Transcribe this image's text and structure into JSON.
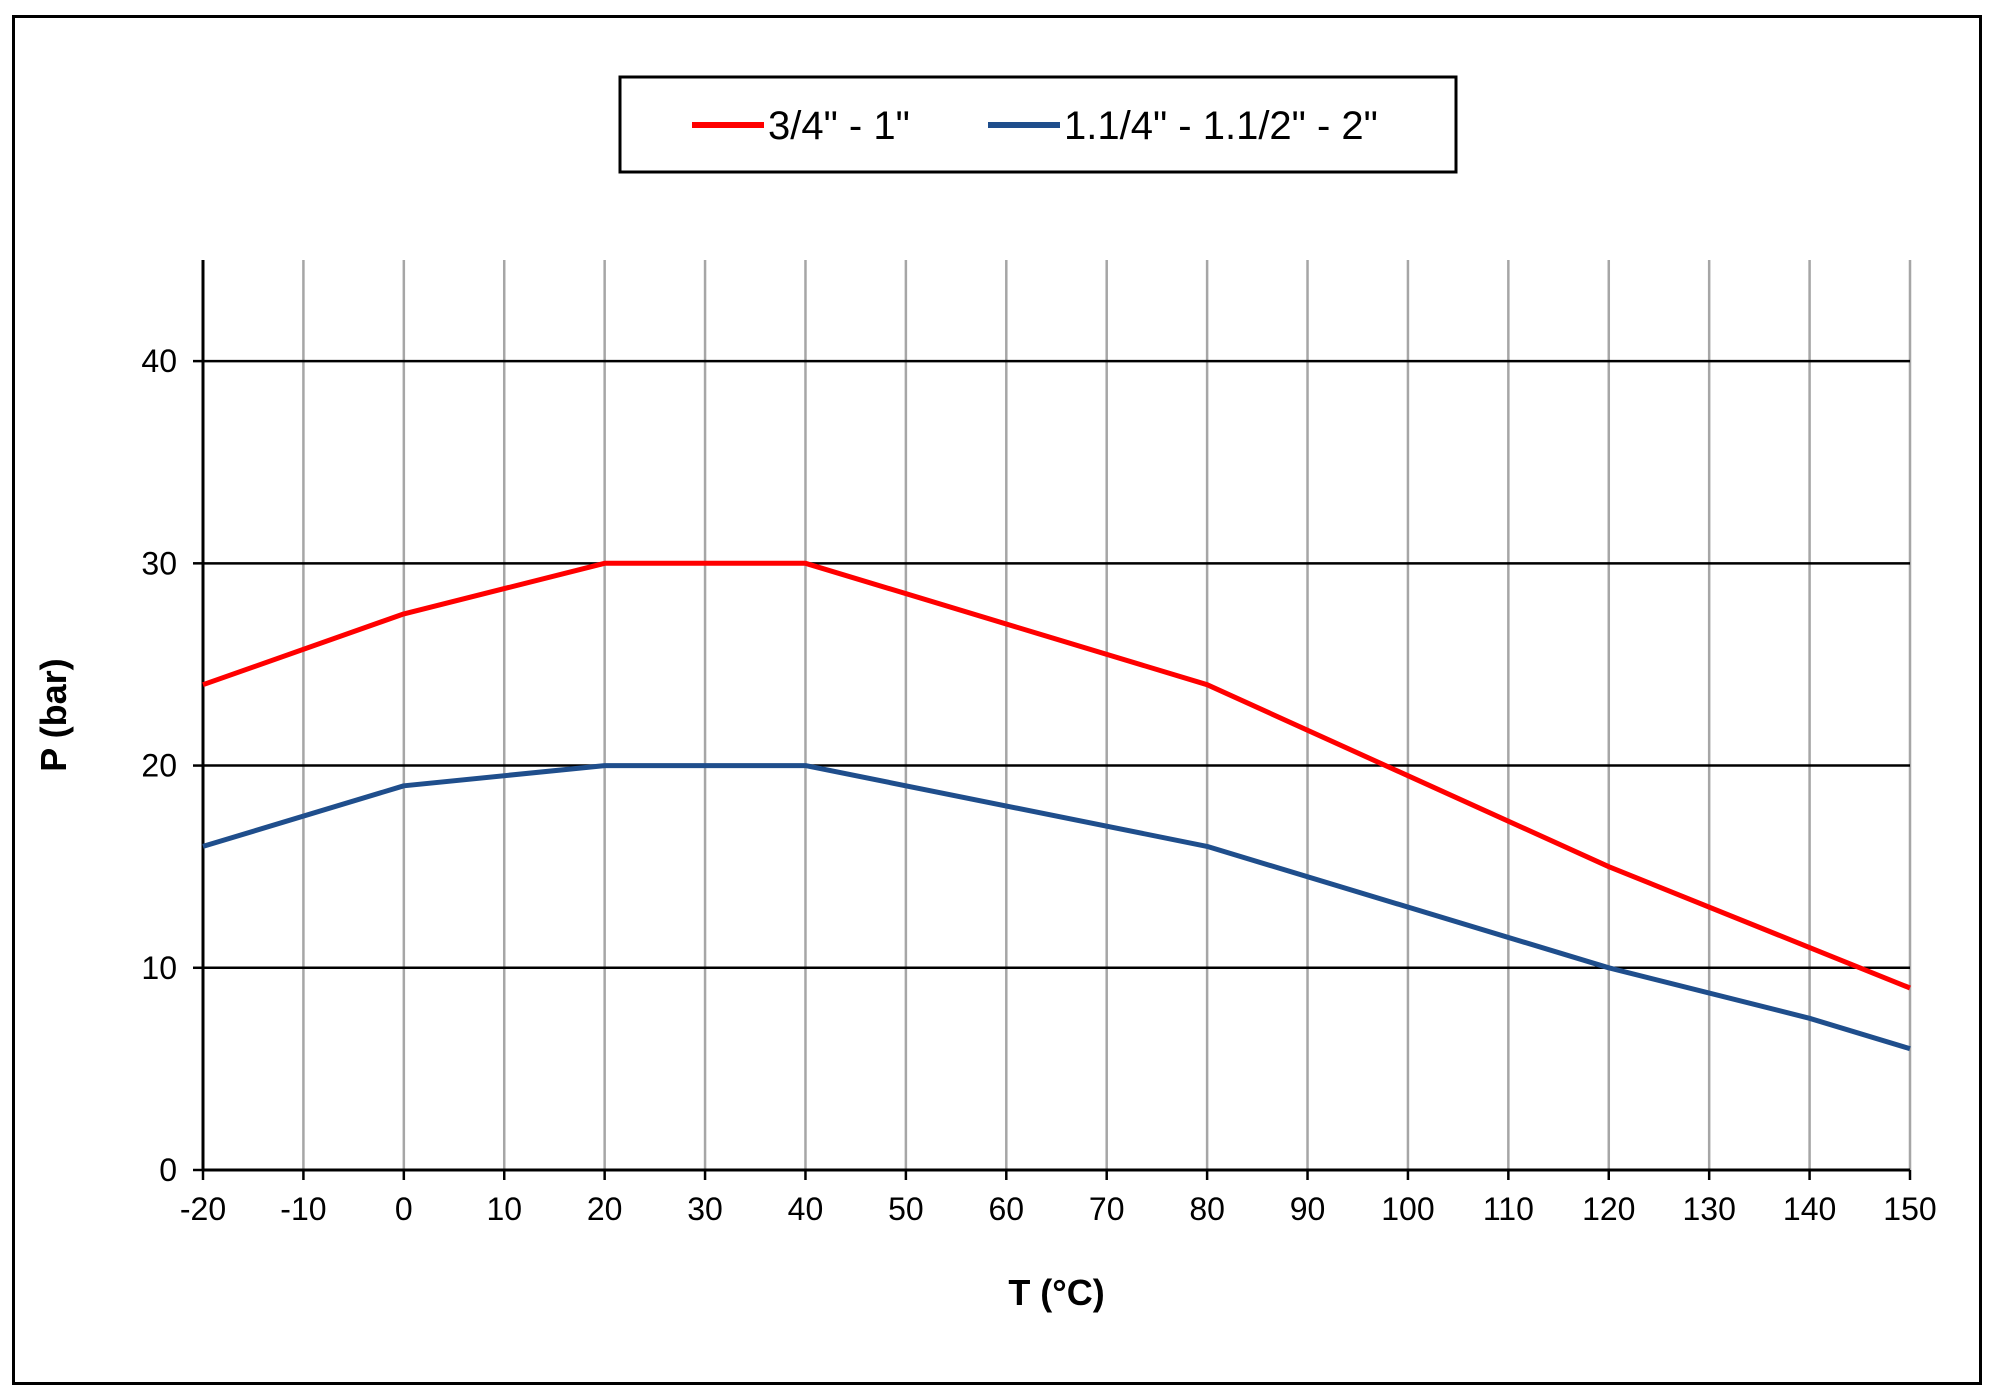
{
  "chart_data": {
    "type": "line",
    "title": "",
    "xlabel": "T (°C)",
    "ylabel": "P (bar)",
    "xlim": [
      -20,
      150
    ],
    "ylim": [
      0,
      45
    ],
    "x_ticks": [
      -20,
      -10,
      0,
      10,
      20,
      30,
      40,
      50,
      60,
      70,
      80,
      90,
      100,
      110,
      120,
      130,
      140,
      150
    ],
    "x_tick_labels": [
      "-20",
      "-10",
      "0",
      "10",
      "20",
      "30",
      "40",
      "50",
      "60",
      "70",
      "80",
      "90",
      "100",
      "110",
      "120",
      "130",
      "140",
      "150"
    ],
    "y_ticks": [
      0,
      10,
      20,
      30,
      40
    ],
    "y_tick_labels": [
      "0",
      "10",
      "20",
      "30",
      "40"
    ],
    "grid": {
      "vertical": true,
      "horizontal": true
    },
    "legend_position": "top-center",
    "series": [
      {
        "name": "3/4\" - 1\"",
        "color": "#ff0000",
        "x": [
          -20,
          0,
          20,
          40,
          80,
          100,
          120,
          150
        ],
        "y": [
          24,
          27.5,
          30,
          30,
          24,
          19.5,
          15,
          9
        ]
      },
      {
        "name": "1.1/4\" - 1.1/2\" - 2\"",
        "color": "#1f4e8c",
        "x": [
          -20,
          0,
          20,
          40,
          80,
          120,
          140,
          150
        ],
        "y": [
          16,
          19,
          20,
          20,
          16,
          10,
          7.5,
          6
        ]
      }
    ]
  }
}
